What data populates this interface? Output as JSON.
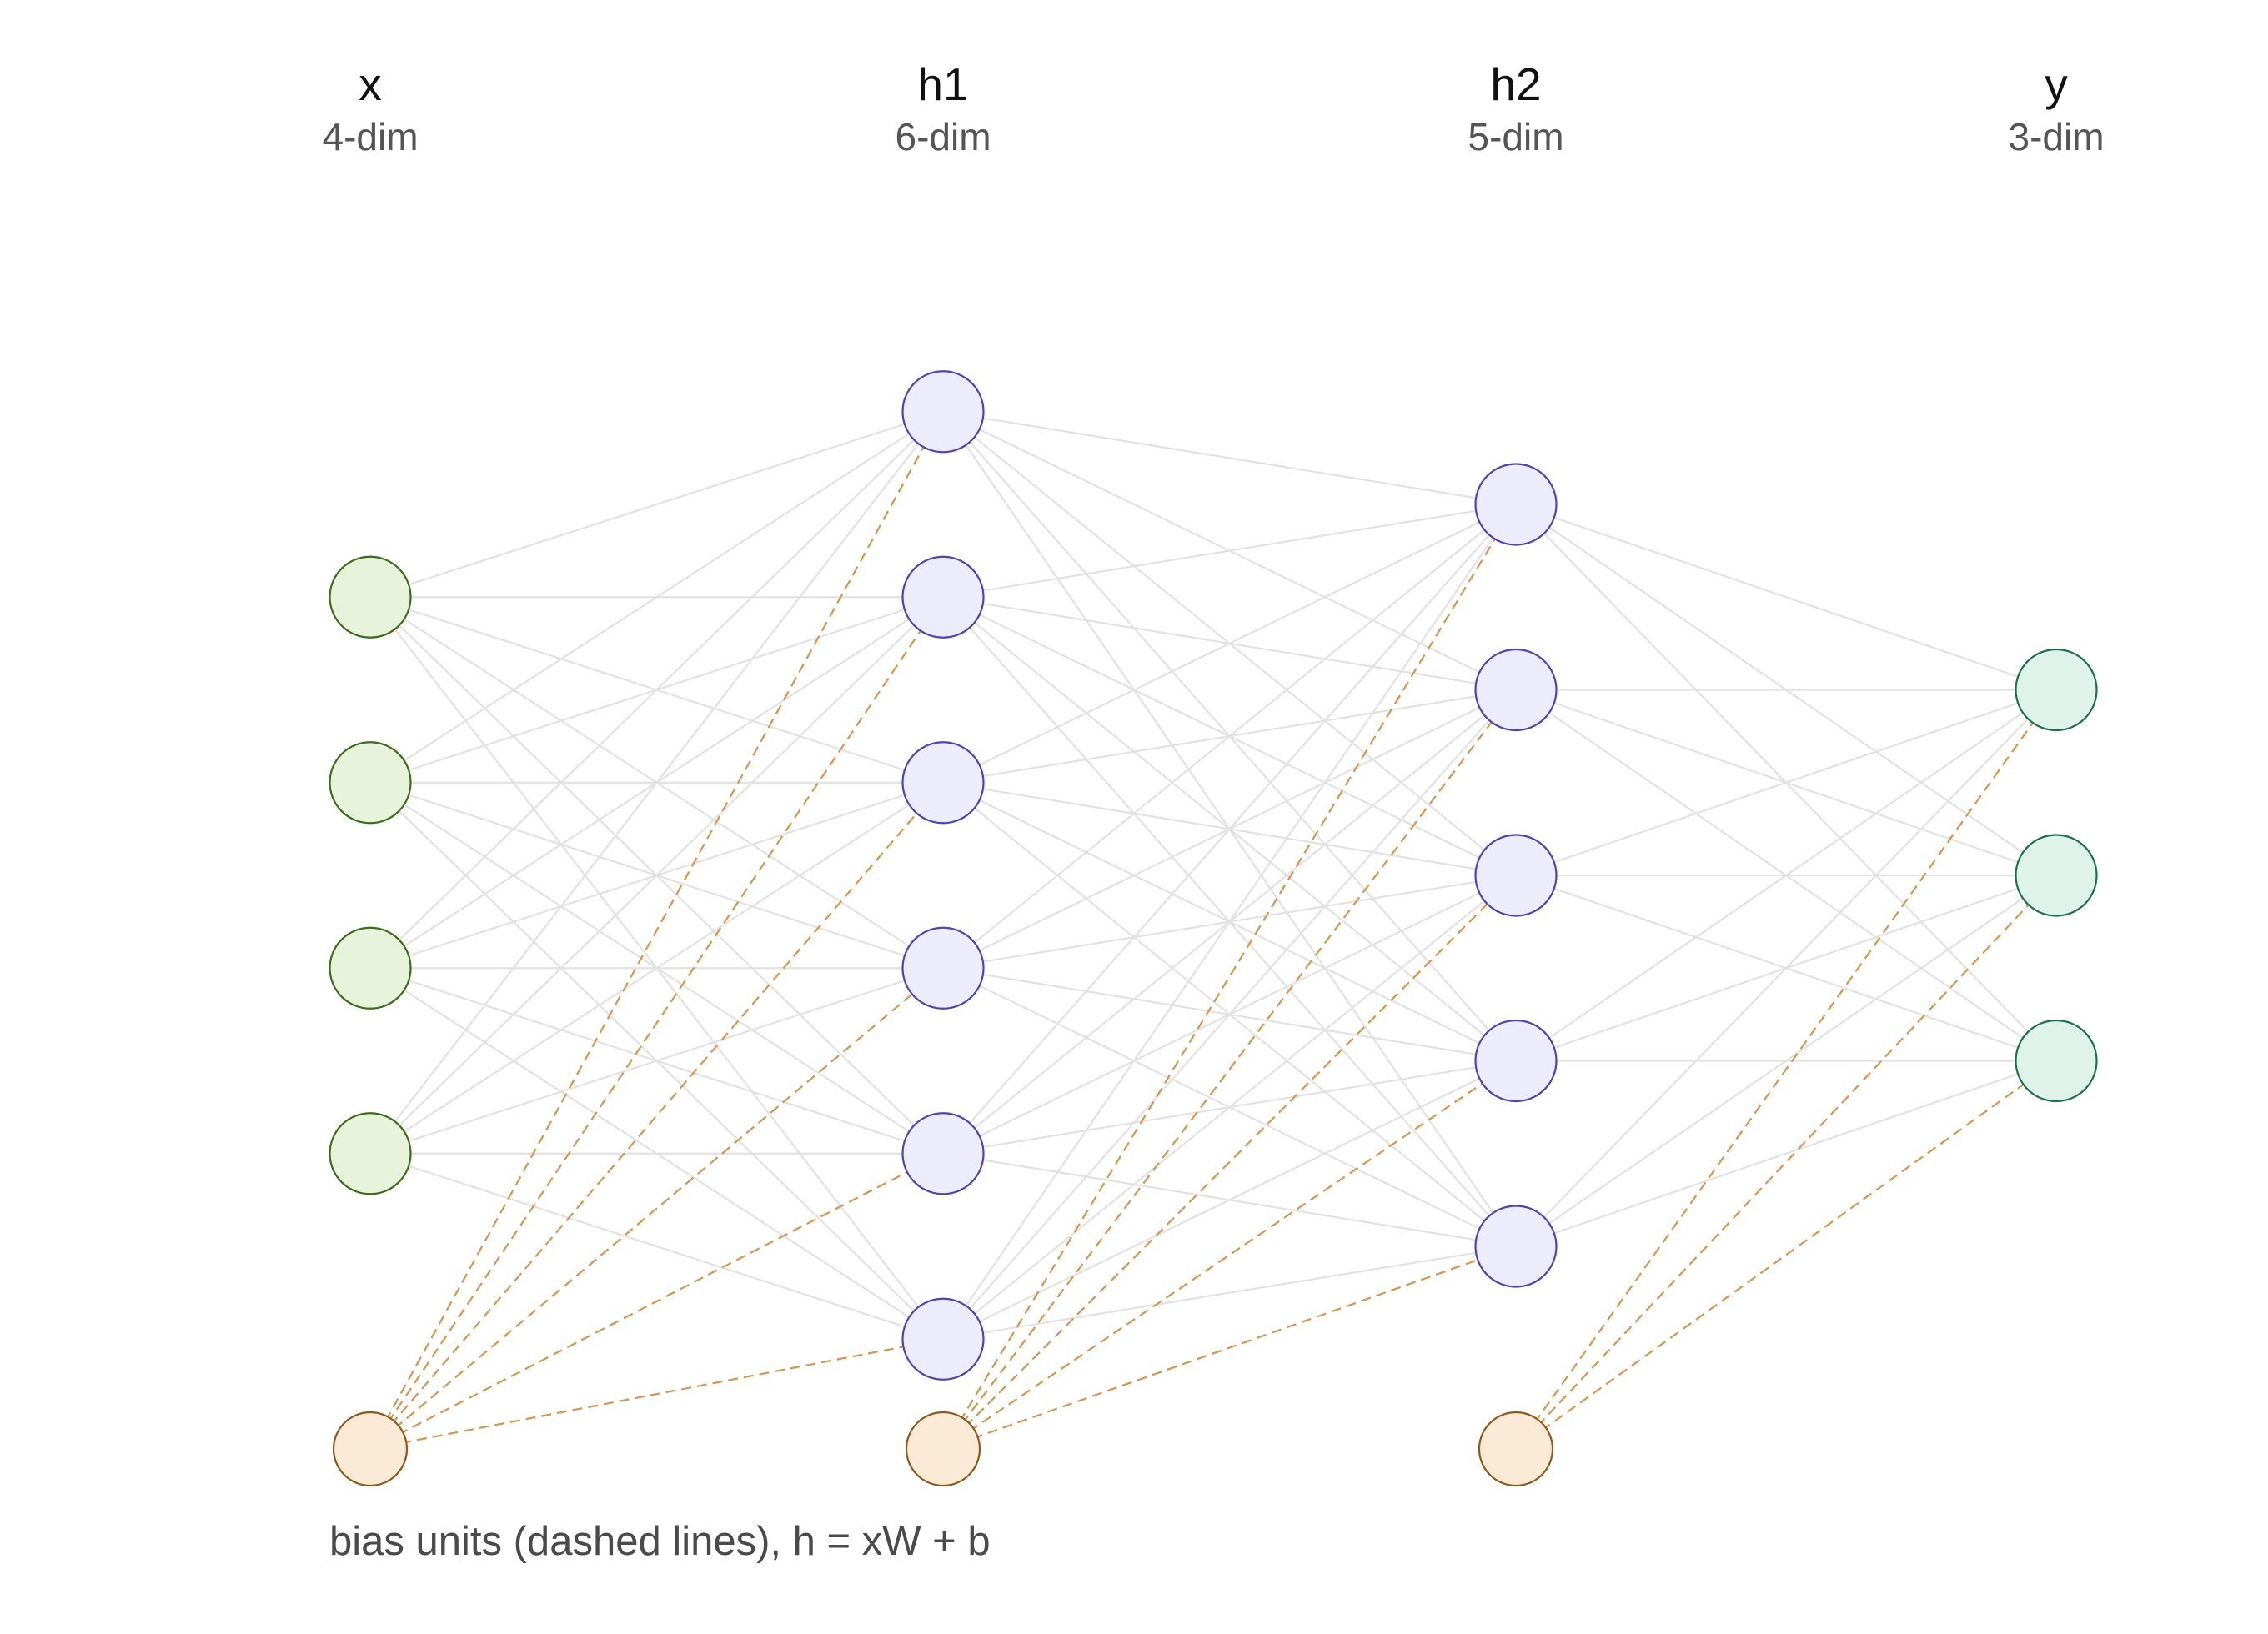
{
  "layers": [
    {
      "name": "x",
      "dim_label": "4-dim",
      "units": 4,
      "has_bias": true,
      "fill": "#e8f3dc",
      "stroke": "#3e6b1d"
    },
    {
      "name": "h1",
      "dim_label": "6-dim",
      "units": 6,
      "has_bias": true,
      "fill": "#ececfa",
      "stroke": "#4d45b0"
    },
    {
      "name": "h2",
      "dim_label": "5-dim",
      "units": 5,
      "has_bias": true,
      "fill": "#ececfa",
      "stroke": "#4d45b0"
    },
    {
      "name": "y",
      "dim_label": "3-dim",
      "units": 3,
      "has_bias": false,
      "fill": "#dff3ea",
      "stroke": "#1f6e4d"
    }
  ],
  "bias": {
    "fill": "#fbebd6",
    "stroke": "#8a5a1e",
    "edge_color": "#d9944f"
  },
  "edge_color": "#e2e2e2",
  "caption": "bias units (dashed lines), h = xW + b"
}
